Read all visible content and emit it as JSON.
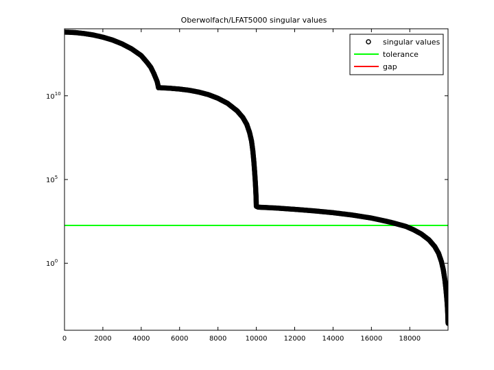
{
  "chart_data": {
    "type": "scatter",
    "title": "Oberwolfach/LFAT5000 singular values",
    "xlabel": "",
    "ylabel": "",
    "xlim": [
      0,
      19994
    ],
    "ylim_log10": [
      -4,
      14
    ],
    "yscale": "log",
    "grid": false,
    "legend_position": "top-right",
    "x_ticks": [
      0,
      2000,
      4000,
      6000,
      8000,
      10000,
      12000,
      14000,
      16000,
      18000
    ],
    "x_tick_labels": [
      "0",
      "2000",
      "4000",
      "6000",
      "8000",
      "10000",
      "12000",
      "14000",
      "16000",
      "18000"
    ],
    "y_ticks_log10": [
      0,
      5,
      10
    ],
    "y_tick_labels": [
      {
        "base": "10",
        "exp": "0"
      },
      {
        "base": "10",
        "exp": "5"
      },
      {
        "base": "10",
        "exp": "10"
      }
    ],
    "series": [
      {
        "name": "singular values",
        "style": "circle-markers",
        "color": "#000000",
        "points_log10": [
          [
            0,
            13.8
          ],
          [
            300,
            13.79
          ],
          [
            600,
            13.77
          ],
          [
            1000,
            13.72
          ],
          [
            1500,
            13.63
          ],
          [
            2000,
            13.5
          ],
          [
            2500,
            13.33
          ],
          [
            3000,
            13.1
          ],
          [
            3500,
            12.8
          ],
          [
            4000,
            12.4
          ],
          [
            4300,
            12.0
          ],
          [
            4500,
            11.7
          ],
          [
            4650,
            11.35
          ],
          [
            4760,
            11.05
          ],
          [
            4830,
            10.85
          ],
          [
            4880,
            10.6
          ],
          [
            4900,
            10.48
          ],
          [
            4920,
            10.5
          ],
          [
            5000,
            10.48
          ],
          [
            5500,
            10.45
          ],
          [
            6000,
            10.4
          ],
          [
            6500,
            10.33
          ],
          [
            7000,
            10.22
          ],
          [
            7500,
            10.07
          ],
          [
            8000,
            9.85
          ],
          [
            8500,
            9.55
          ],
          [
            9000,
            9.1
          ],
          [
            9300,
            8.7
          ],
          [
            9500,
            8.3
          ],
          [
            9650,
            7.8
          ],
          [
            9750,
            7.3
          ],
          [
            9820,
            6.7
          ],
          [
            9870,
            6.1
          ],
          [
            9910,
            5.5
          ],
          [
            9940,
            5.0
          ],
          [
            9960,
            4.6
          ],
          [
            9975,
            4.25
          ],
          [
            9985,
            4.0
          ],
          [
            9992,
            3.8
          ],
          [
            9996,
            3.6
          ],
          [
            10000,
            3.4
          ],
          [
            10100,
            3.35
          ],
          [
            11000,
            3.3
          ],
          [
            12000,
            3.22
          ],
          [
            13000,
            3.13
          ],
          [
            14000,
            3.02
          ],
          [
            15000,
            2.88
          ],
          [
            16000,
            2.7
          ],
          [
            17000,
            2.45
          ],
          [
            17800,
            2.2
          ],
          [
            18200,
            2.0
          ],
          [
            18600,
            1.75
          ],
          [
            19000,
            1.4
          ],
          [
            19300,
            1.0
          ],
          [
            19500,
            0.6
          ],
          [
            19650,
            0.1
          ],
          [
            19750,
            -0.4
          ],
          [
            19830,
            -1.0
          ],
          [
            19880,
            -1.5
          ],
          [
            19920,
            -2.0
          ],
          [
            19950,
            -2.4
          ],
          [
            19970,
            -2.8
          ],
          [
            19985,
            -3.2
          ],
          [
            19994,
            -3.6
          ]
        ]
      },
      {
        "name": "tolerance",
        "style": "line",
        "color": "#00ff00",
        "y_log10": 2.26
      },
      {
        "name": "gap",
        "style": "line",
        "color": "#ff0000",
        "y_log10": null
      }
    ]
  }
}
